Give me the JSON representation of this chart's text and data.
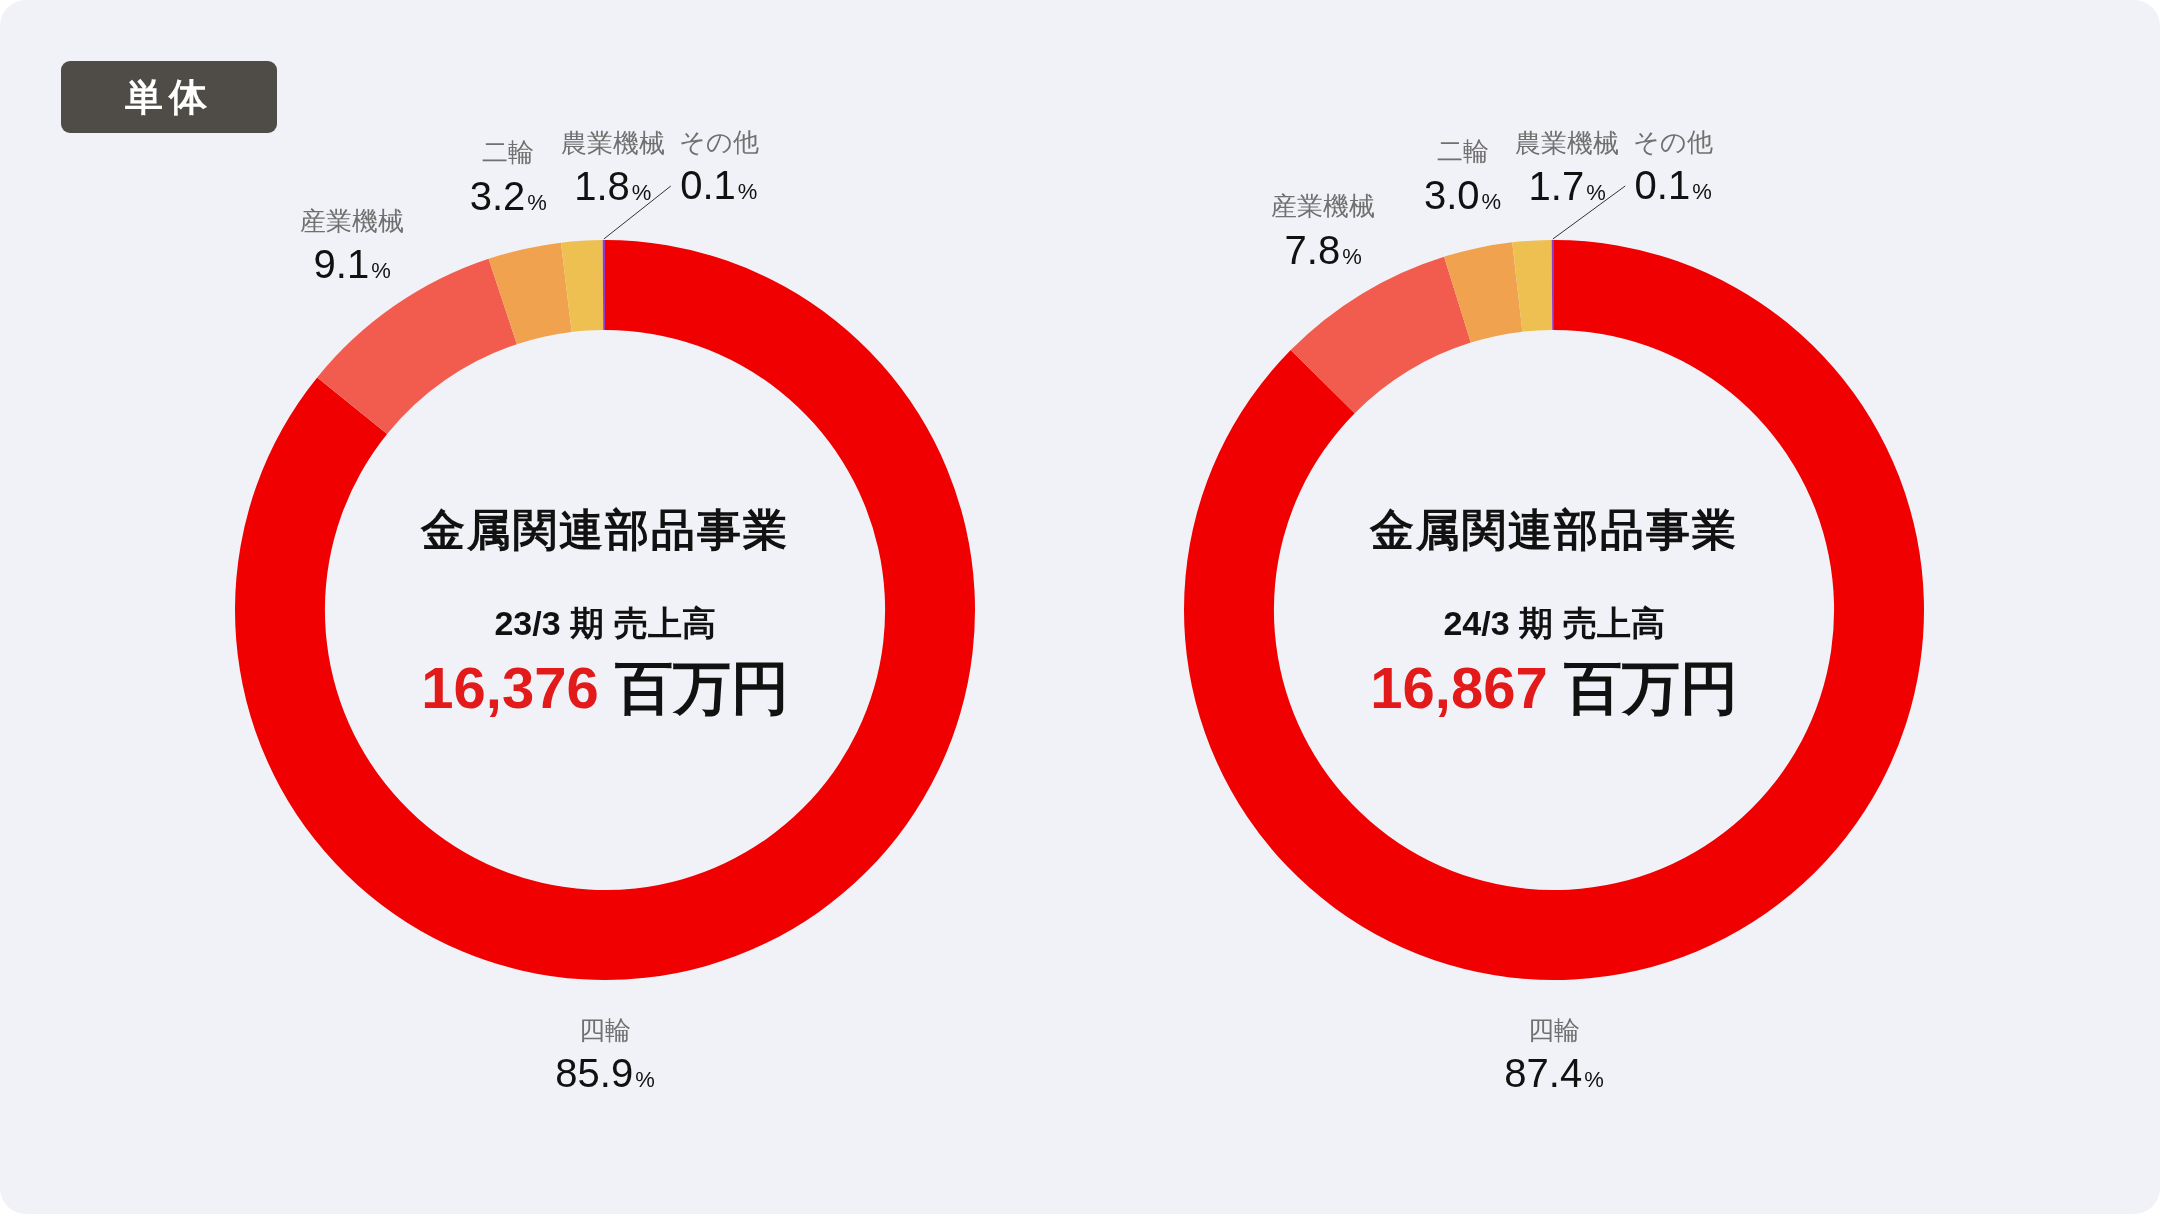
{
  "chart_data": [
    {
      "type": "other",
      "title": "単体"
    },
    {
      "type": "donut",
      "title": "金属関連部品事業",
      "subtitle": "23/3 期 売上高",
      "annotations": [
        "16,376",
        "百万円"
      ],
      "categories": [
        "四輪",
        "産業機械",
        "二輪",
        "農業機械",
        "その他"
      ],
      "values": [
        85.9,
        9.1,
        3.2,
        1.8,
        0.1
      ],
      "value_labels": [
        "85.9%",
        "9.1%",
        "3.2%",
        "1.8%",
        "0.1%"
      ],
      "colors": [
        "#f00000",
        "#f25c4e",
        "#f0a24f",
        "#eec052",
        "#8f3ccc"
      ]
    },
    {
      "type": "donut",
      "title": "金属関連部品事業",
      "subtitle": "24/3 期 売上高",
      "annotations": [
        "16,867",
        "百万円"
      ],
      "categories": [
        "四輪",
        "産業機械",
        "二輪",
        "農業機械",
        "その他"
      ],
      "values": [
        87.4,
        7.8,
        3.0,
        1.7,
        0.1
      ],
      "value_labels": [
        "87.4%",
        "7.8%",
        "3.0%",
        "1.7%",
        "0.1%"
      ],
      "colors": [
        "#f00000",
        "#f25c4e",
        "#f0a24f",
        "#eec052",
        "#8f3ccc"
      ]
    }
  ]
}
